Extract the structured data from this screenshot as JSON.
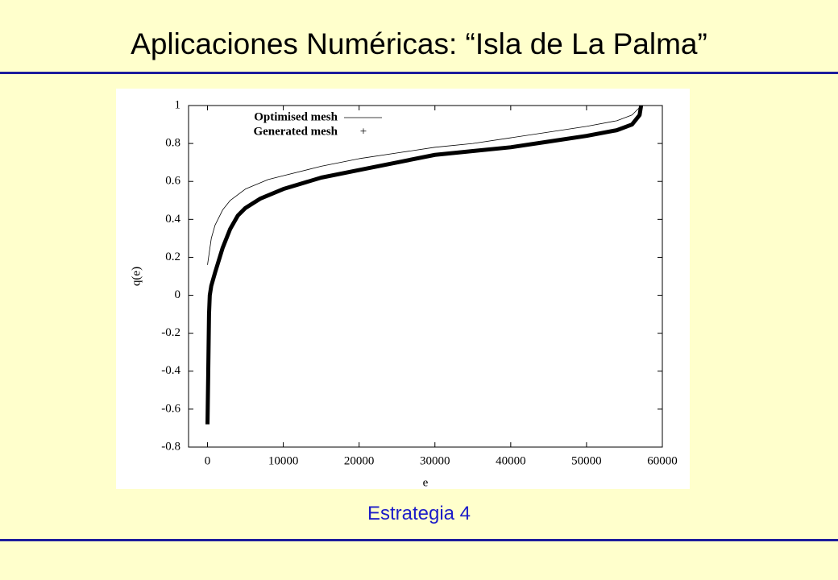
{
  "slide": {
    "title": "Aplicaciones Numéricas: “Isla de La Palma”",
    "caption": "Estrategia 4"
  },
  "chart_data": {
    "type": "line",
    "x_label": "e",
    "y_label": "q(e)",
    "xlim": [
      -2500,
      60000
    ],
    "ylim": [
      -0.8,
      1
    ],
    "xticks": [
      0,
      10000,
      20000,
      30000,
      40000,
      50000,
      60000
    ],
    "yticks": [
      -0.8,
      -0.6,
      -0.4,
      -0.2,
      0,
      0.2,
      0.4,
      0.6,
      0.8,
      1
    ],
    "legend": "upper left",
    "series": [
      {
        "name": "Optimised mesh",
        "color": "#000000",
        "style": "line",
        "x": [
          0,
          500,
          1000,
          2000,
          3000,
          5000,
          8000,
          10000,
          15000,
          20000,
          25000,
          30000,
          35000,
          40000,
          45000,
          50000,
          54000,
          56000,
          57000,
          57200
        ],
        "values": [
          0.16,
          0.3,
          0.37,
          0.45,
          0.5,
          0.56,
          0.61,
          0.63,
          0.68,
          0.72,
          0.75,
          0.78,
          0.8,
          0.83,
          0.86,
          0.89,
          0.92,
          0.95,
          0.99,
          1.0
        ]
      },
      {
        "name": "Generated mesh",
        "color": "#000000",
        "style": "points",
        "x": [
          0,
          100,
          200,
          300,
          500,
          1000,
          2000,
          3000,
          4000,
          5000,
          7000,
          10000,
          15000,
          20000,
          25000,
          30000,
          35000,
          40000,
          45000,
          50000,
          54000,
          56000,
          57000,
          57200
        ],
        "values": [
          -0.68,
          -0.4,
          -0.1,
          0.0,
          0.05,
          0.12,
          0.25,
          0.35,
          0.42,
          0.46,
          0.51,
          0.56,
          0.62,
          0.66,
          0.7,
          0.74,
          0.76,
          0.78,
          0.81,
          0.84,
          0.87,
          0.9,
          0.95,
          1.0
        ]
      }
    ]
  }
}
